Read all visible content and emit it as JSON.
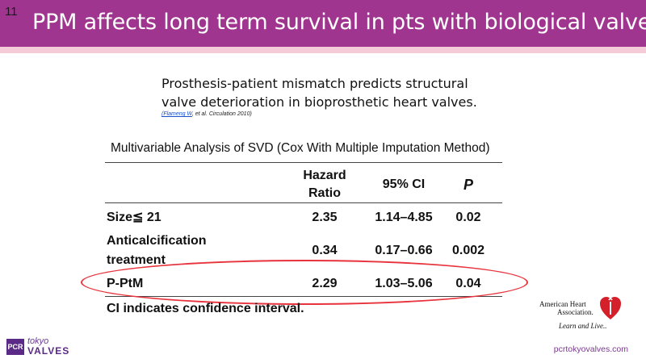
{
  "slide": {
    "number": "11",
    "title": "PPM affects long term survival in pts with biological valve"
  },
  "subtitle": {
    "line1": "Prosthesis-patient mismatch predicts structural",
    "line2": "valve deterioration in bioprosthetic heart valves.",
    "citation_link": "(Flameng W",
    "citation_rest": ", et al.   Circulation 2010)"
  },
  "table": {
    "caption": "Multivariable Analysis of SVD (Cox With Multiple Imputation Method)",
    "headers": {
      "hazard_line1": "Hazard",
      "hazard_line2": "Ratio",
      "ci": "95% CI",
      "p": "P"
    },
    "rows": [
      {
        "label": "Size≦ 21",
        "hazard": "2.35",
        "ci": "1.14–4.85",
        "p": "0.02"
      },
      {
        "label_line1": "Anticalcification",
        "label_line2": "treatment",
        "hazard": "0.34",
        "ci": "0.17–0.66",
        "p": "0.002"
      },
      {
        "label": "P-PtM",
        "hazard": "2.29",
        "ci": "1.03–5.06",
        "p": "0.04"
      }
    ],
    "footnote": "CI indicates confidence interval."
  },
  "highlight": {
    "color": "#e8323c"
  },
  "aha_logo": {
    "line1": "American Heart",
    "line2": "Association.",
    "tagline": "Learn and Live.."
  },
  "pcr_logo": {
    "box": "PCR",
    "tokyo": "tokyo",
    "valves": "VALVES"
  },
  "footer": {
    "url": "pcrtokyovalves.com"
  },
  "colors": {
    "title_bar": "#a0358f",
    "stripe": "#f4cbd6",
    "accent_purple": "#5b2a86",
    "heart_red": "#d4202a"
  }
}
